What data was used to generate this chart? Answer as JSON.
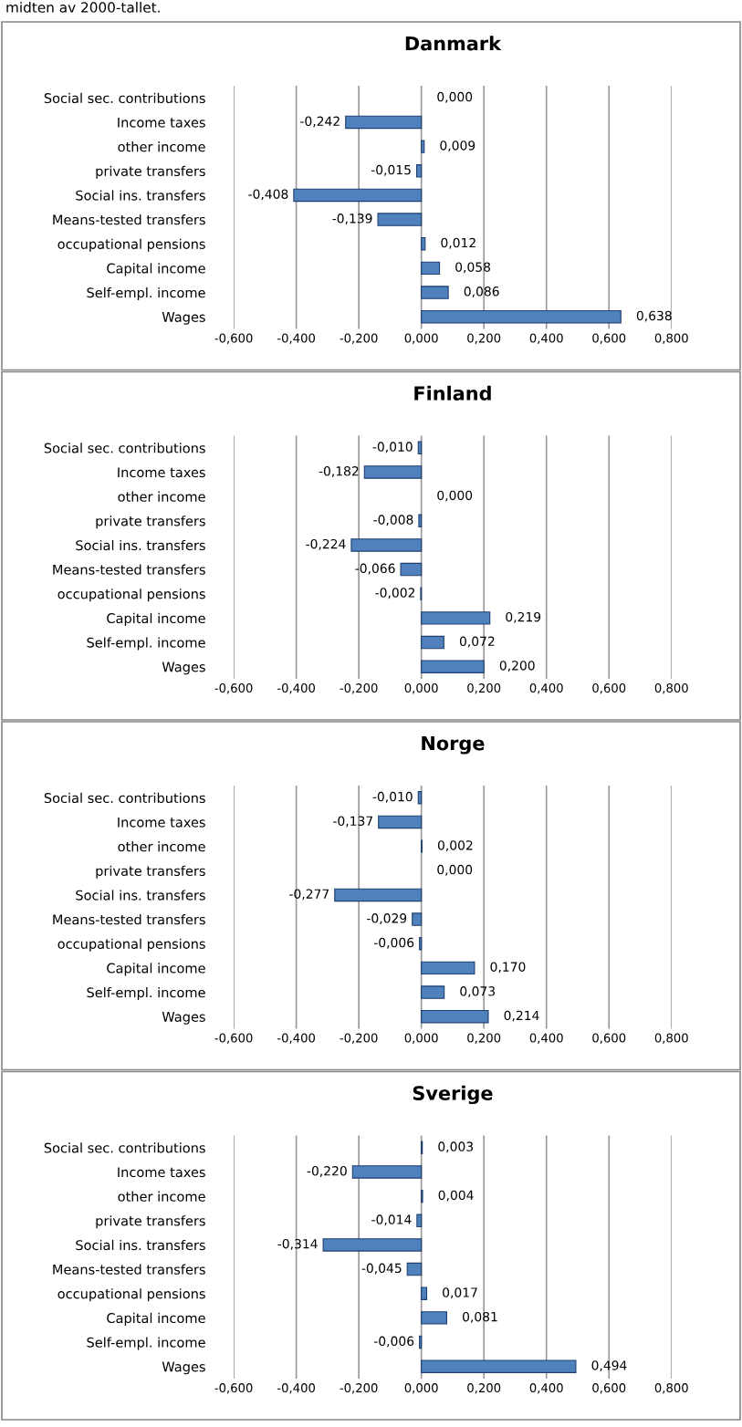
{
  "chart_data": [
    {
      "type": "bar",
      "orientation": "horizontal",
      "title": "Danmark",
      "annotations": [
        "midten av 2000-tallet."
      ],
      "color": "#4f81bd",
      "grid": "x",
      "categories": [
        "Social sec. contributions",
        "Income taxes",
        "other income",
        "private transfers",
        "Social ins. transfers",
        "Means-tested transfers",
        "occupational pensions",
        "Capital income",
        "Self-empl. income",
        "Wages"
      ],
      "values": [
        0.0,
        -0.242,
        0.009,
        -0.015,
        -0.408,
        -0.139,
        0.012,
        0.058,
        0.086,
        0.638
      ],
      "value_labels": [
        "0,000",
        "-0,242",
        "0,009",
        "-0,015",
        "-0,408",
        "-0,139",
        "0,012",
        "0,058",
        "0,086",
        "0,638"
      ],
      "xlim": [
        -0.6,
        0.8
      ],
      "xticks": [
        {
          "value": -0.6,
          "label": "-0,600"
        },
        {
          "value": -0.4,
          "label": "-0,400"
        },
        {
          "value": -0.2,
          "label": "-0,200"
        },
        {
          "value": 0,
          "label": "0,000"
        },
        {
          "value": 0.2,
          "label": "0,200"
        },
        {
          "value": 0.4,
          "label": "0,400"
        },
        {
          "value": 0.6,
          "label": "0,600"
        },
        {
          "value": 0.8,
          "label": "0,800"
        }
      ]
    },
    {
      "type": "bar",
      "orientation": "horizontal",
      "title": "Finland",
      "color": "#4f81bd",
      "grid": "x",
      "categories": [
        "Social sec. contributions",
        "Income taxes",
        "other income",
        "private transfers",
        "Social ins. transfers",
        "Means-tested transfers",
        "occupational pensions",
        "Capital income",
        "Self-empl. income",
        "Wages"
      ],
      "values": [
        -0.01,
        -0.182,
        0.0,
        -0.008,
        -0.224,
        -0.066,
        -0.002,
        0.219,
        0.072,
        0.2
      ],
      "value_labels": [
        "-0,010",
        "-0,182",
        "0,000",
        "-0,008",
        "-0,224",
        "-0,066",
        "-0,002",
        "0,219",
        "0,072",
        "0,200"
      ],
      "xlim": [
        -0.6,
        0.8
      ],
      "xticks": [
        {
          "value": -0.6,
          "label": "-0,600"
        },
        {
          "value": -0.4,
          "label": "-0,400"
        },
        {
          "value": -0.2,
          "label": "-0,200"
        },
        {
          "value": 0,
          "label": "0,000"
        },
        {
          "value": 0.2,
          "label": "0,200"
        },
        {
          "value": 0.4,
          "label": "0,400"
        },
        {
          "value": 0.6,
          "label": "0,600"
        },
        {
          "value": 0.8,
          "label": "0,800"
        }
      ]
    },
    {
      "type": "bar",
      "orientation": "horizontal",
      "title": "Norge",
      "color": "#4f81bd",
      "grid": "x",
      "categories": [
        "Social sec. contributions",
        "Income taxes",
        "other income",
        "private transfers",
        "Social ins. transfers",
        "Means-tested transfers",
        "occupational pensions",
        "Capital income",
        "Self-empl. income",
        "Wages"
      ],
      "values": [
        -0.01,
        -0.137,
        0.002,
        0.0,
        -0.277,
        -0.029,
        -0.006,
        0.17,
        0.073,
        0.214
      ],
      "value_labels": [
        "-0,010",
        "-0,137",
        "0,002",
        "0,000",
        "-0,277",
        "-0,029",
        "-0,006",
        "0,170",
        "0,073",
        "0,214"
      ],
      "xlim": [
        -0.6,
        0.8
      ],
      "xticks": [
        {
          "value": -0.6,
          "label": "-0,600"
        },
        {
          "value": -0.4,
          "label": "-0,400"
        },
        {
          "value": -0.2,
          "label": "-0,200"
        },
        {
          "value": 0,
          "label": "0,000"
        },
        {
          "value": 0.2,
          "label": "0,200"
        },
        {
          "value": 0.4,
          "label": "0,400"
        },
        {
          "value": 0.6,
          "label": "0,600"
        },
        {
          "value": 0.8,
          "label": "0,800"
        }
      ]
    },
    {
      "type": "bar",
      "orientation": "horizontal",
      "title": "Sverige",
      "color": "#4f81bd",
      "grid": "x",
      "categories": [
        "Social sec. contributions",
        "Income taxes",
        "other income",
        "private transfers",
        "Social ins. transfers",
        "Means-tested transfers",
        "occupational pensions",
        "Capital income",
        "Self-empl. income",
        "Wages"
      ],
      "values": [
        0.003,
        -0.22,
        0.004,
        -0.014,
        -0.314,
        -0.045,
        0.017,
        0.081,
        -0.006,
        0.494
      ],
      "value_labels": [
        "0,003",
        "-0,220",
        "0,004",
        "-0,014",
        "-0,314",
        "-0,045",
        "0,017",
        "0,081",
        "-0,006",
        "0,494"
      ],
      "xlim": [
        -0.6,
        0.8
      ],
      "xticks": [
        {
          "value": -0.6,
          "label": "-0,600"
        },
        {
          "value": -0.4,
          "label": "-0,400"
        },
        {
          "value": -0.2,
          "label": "-0,200"
        },
        {
          "value": 0,
          "label": "0,000"
        },
        {
          "value": 0.2,
          "label": "0,200"
        },
        {
          "value": 0.4,
          "label": "0,400"
        },
        {
          "value": 0.6,
          "label": "0,600"
        },
        {
          "value": 0.8,
          "label": "0,800"
        }
      ]
    }
  ]
}
